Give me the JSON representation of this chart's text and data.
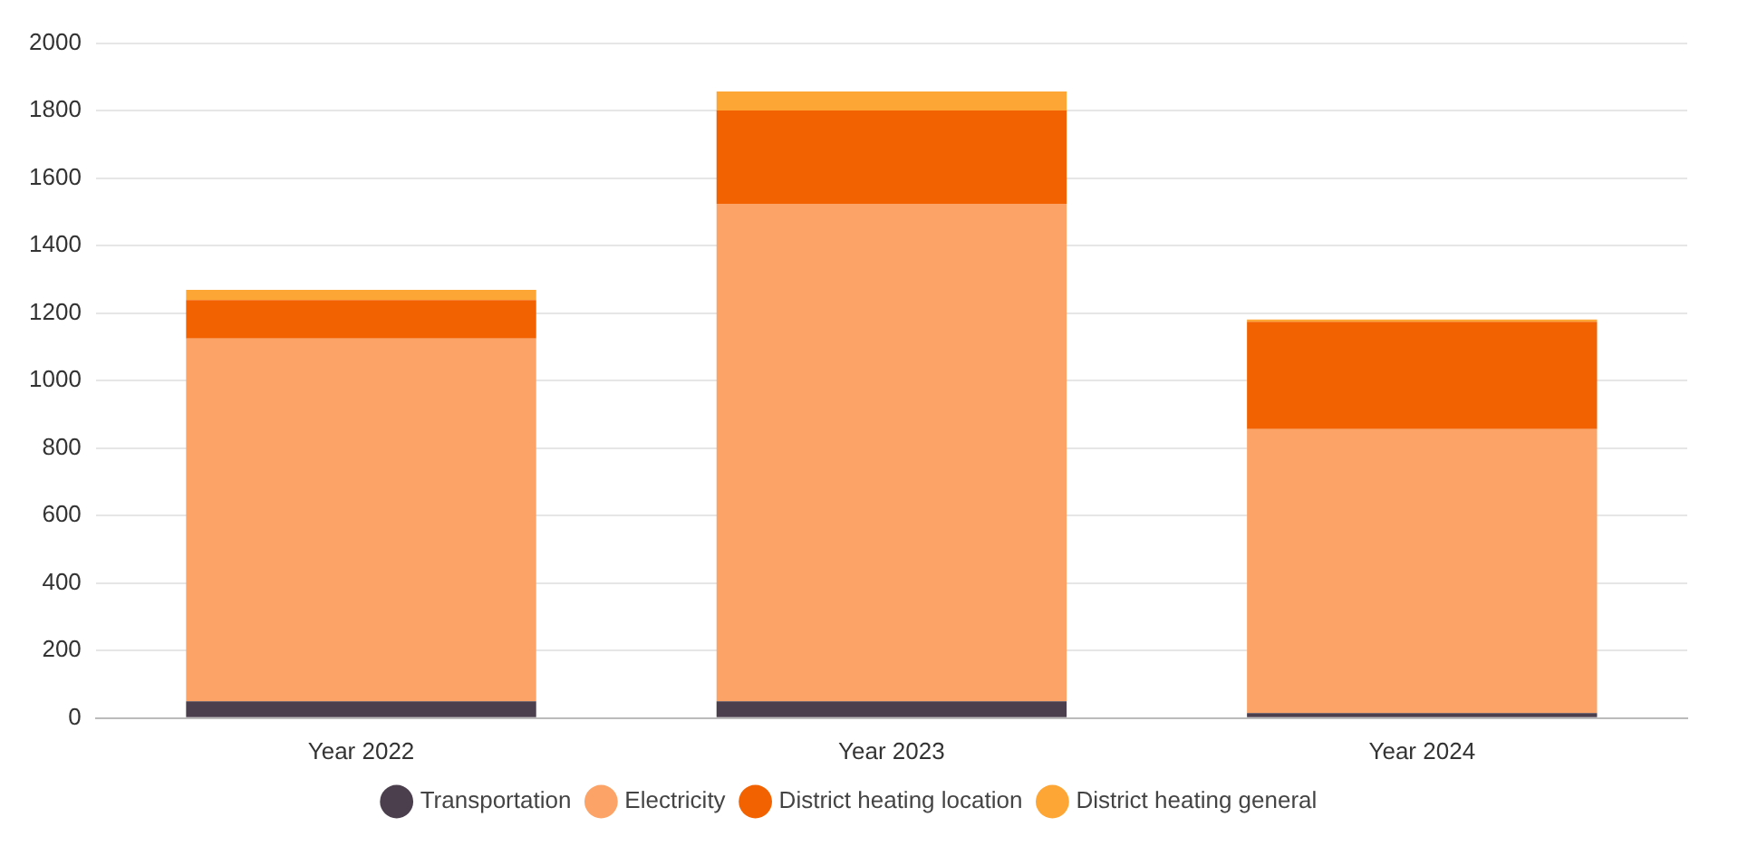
{
  "chart_data": {
    "type": "bar",
    "stacked": true,
    "categories": [
      "Year 2022",
      "Year 2023",
      "Year 2024"
    ],
    "series": [
      {
        "name": "Transportation",
        "color": "#4b3f4e",
        "values": [
          50,
          50,
          15
        ]
      },
      {
        "name": "Electricity",
        "color": "#fca468",
        "values": [
          1075,
          1474,
          841
        ]
      },
      {
        "name": "District heating location",
        "color": "#f26200",
        "values": [
          114,
          276,
          318
        ]
      },
      {
        "name": "District heating general",
        "color": "#fda535",
        "values": [
          30,
          57,
          7
        ]
      }
    ],
    "ylim": [
      0,
      2000
    ],
    "yticks": [
      0,
      200,
      400,
      600,
      800,
      1000,
      1200,
      1400,
      1600,
      1800,
      2000
    ],
    "grid": "y",
    "legend": "bottom"
  }
}
